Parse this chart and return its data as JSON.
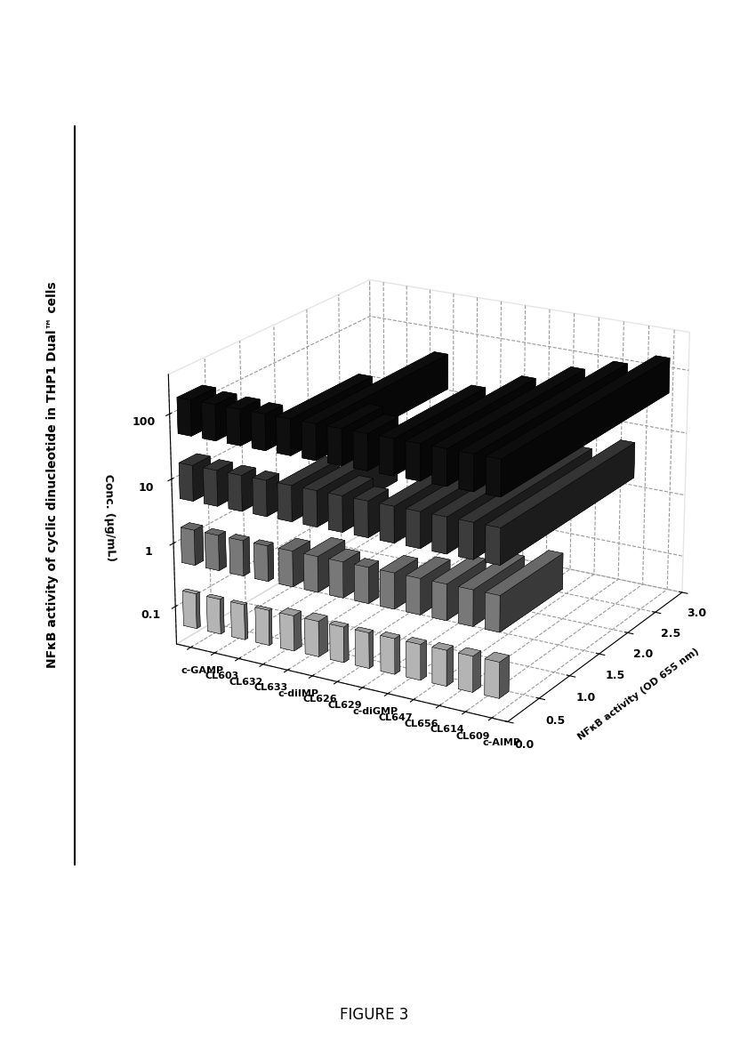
{
  "title": "NFκB activity of cyclic dinucleotide in THP1 Dual™ cells",
  "z_axis_label": "NFκB activity (OD 655 nm)",
  "figure_caption": "FIGURE 3",
  "compounds": [
    "c-GAMP",
    "CL603",
    "CL632",
    "CL633",
    "c-diIMP",
    "CL626",
    "CL629",
    "c-diGMP",
    "CL647",
    "CL656",
    "CL614",
    "CL609",
    "c-AIMP"
  ],
  "concentrations": [
    "0.1",
    "1",
    "10",
    "100"
  ],
  "conc_label": "Conc. (µg/mL)",
  "xlim": [
    0.0,
    3.0
  ],
  "xticks": [
    0.0,
    0.5,
    1.0,
    1.5,
    2.0,
    2.5,
    3.0
  ],
  "data": {
    "c-GAMP": [
      0.05,
      0.12,
      0.25,
      0.35
    ],
    "CL603": [
      0.05,
      0.1,
      0.22,
      0.3
    ],
    "CL632": [
      0.04,
      0.09,
      0.2,
      0.28
    ],
    "CL633": [
      0.04,
      0.08,
      0.18,
      0.25
    ],
    "c-diIMP": [
      0.11,
      0.25,
      0.7,
      1.2
    ],
    "CL626": [
      0.13,
      0.4,
      1.2,
      2.0
    ],
    "CL629": [
      0.07,
      0.25,
      0.45,
      0.6
    ],
    "c-diGMP": [
      0.06,
      0.15,
      0.3,
      0.45
    ],
    "CL647": [
      0.08,
      0.35,
      0.8,
      1.4
    ],
    "CL656": [
      0.09,
      0.45,
      1.2,
      1.8
    ],
    "CL614": [
      0.1,
      0.6,
      1.6,
      2.2
    ],
    "CL609": [
      0.12,
      0.8,
      1.9,
      2.5
    ],
    "c-AIMP": [
      0.15,
      1.0,
      2.2,
      2.8
    ]
  },
  "bar_colors": {
    "0.1": "#cccccc",
    "1": "#888888",
    "10": "#444444",
    "100": "#111111"
  },
  "background_color": "#ffffff",
  "grid_color": "#999999",
  "elev": 20,
  "azim": 30
}
